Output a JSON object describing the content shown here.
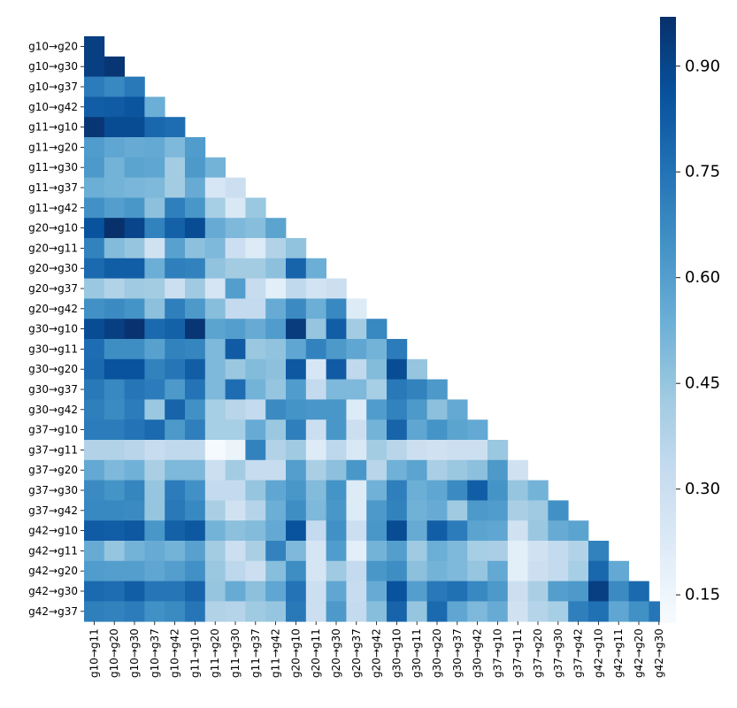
{
  "chart_data": {
    "type": "heatmap",
    "title": "",
    "xlabel": "",
    "ylabel": "",
    "mask": "lower-triangle (upper triangle and diagonal hidden)",
    "rows": [
      "g10→g20",
      "g10→g30",
      "g10→g37",
      "g10→g42",
      "g11→g10",
      "g11→g20",
      "g11→g30",
      "g11→g37",
      "g11→g42",
      "g20→g10",
      "g20→g11",
      "g20→g30",
      "g20→g37",
      "g20→g42",
      "g30→g10",
      "g30→g11",
      "g30→g20",
      "g30→g37",
      "g30→g42",
      "g37→g10",
      "g37→g11",
      "g37→g20",
      "g37→g30",
      "g37→g42",
      "g42→g10",
      "g42→g11",
      "g42→g20",
      "g42→g30",
      "g42→g37"
    ],
    "columns": [
      "g10→g11",
      "g10→g20",
      "g10→g30",
      "g10→g37",
      "g10→g42",
      "g11→g10",
      "g11→g20",
      "g11→g30",
      "g11→g37",
      "g11→g42",
      "g20→g10",
      "g20→g11",
      "g20→g30",
      "g20→g37",
      "g20→g42",
      "g30→g10",
      "g30→g11",
      "g30→g20",
      "g30→g37",
      "g30→g42",
      "g37→g10",
      "g37→g11",
      "g37→g20",
      "g37→g30",
      "g37→g42",
      "g42→g10",
      "g42→g11",
      "g42→g20",
      "g42→g30"
    ],
    "values": [
      [
        0.92
      ],
      [
        0.92,
        0.95
      ],
      [
        0.72,
        0.68,
        0.73
      ],
      [
        0.82,
        0.83,
        0.85,
        0.54
      ],
      [
        0.95,
        0.88,
        0.88,
        0.79,
        0.77
      ],
      [
        0.61,
        0.57,
        0.55,
        0.56,
        0.5,
        0.61
      ],
      [
        0.62,
        0.52,
        0.58,
        0.57,
        0.42,
        0.62,
        0.52
      ],
      [
        0.54,
        0.52,
        0.51,
        0.5,
        0.42,
        0.55,
        0.25,
        0.3
      ],
      [
        0.65,
        0.6,
        0.63,
        0.47,
        0.71,
        0.63,
        0.41,
        0.24,
        0.44
      ],
      [
        0.86,
        0.97,
        0.9,
        0.7,
        0.81,
        0.88,
        0.55,
        0.5,
        0.48,
        0.58
      ],
      [
        0.7,
        0.49,
        0.45,
        0.28,
        0.59,
        0.47,
        0.5,
        0.3,
        0.22,
        0.38,
        0.46
      ],
      [
        0.78,
        0.82,
        0.82,
        0.54,
        0.71,
        0.7,
        0.46,
        0.42,
        0.42,
        0.47,
        0.8,
        0.54
      ],
      [
        0.44,
        0.38,
        0.43,
        0.42,
        0.3,
        0.43,
        0.26,
        0.6,
        0.32,
        0.2,
        0.34,
        0.27,
        0.3
      ],
      [
        0.65,
        0.67,
        0.64,
        0.47,
        0.71,
        0.62,
        0.48,
        0.33,
        0.33,
        0.55,
        0.67,
        0.54,
        0.68,
        0.22
      ],
      [
        0.88,
        0.92,
        0.96,
        0.78,
        0.81,
        0.95,
        0.58,
        0.6,
        0.55,
        0.61,
        0.93,
        0.45,
        0.82,
        0.42,
        0.68
      ],
      [
        0.77,
        0.66,
        0.66,
        0.59,
        0.7,
        0.69,
        0.5,
        0.83,
        0.44,
        0.46,
        0.57,
        0.7,
        0.62,
        0.57,
        0.52,
        0.72
      ],
      [
        0.78,
        0.86,
        0.86,
        0.7,
        0.74,
        0.82,
        0.5,
        0.44,
        0.49,
        0.47,
        0.84,
        0.25,
        0.83,
        0.34,
        0.49,
        0.88,
        0.45
      ],
      [
        0.73,
        0.68,
        0.74,
        0.72,
        0.62,
        0.75,
        0.5,
        0.77,
        0.52,
        0.45,
        0.61,
        0.33,
        0.5,
        0.5,
        0.41,
        0.73,
        0.7,
        0.62
      ],
      [
        0.71,
        0.67,
        0.72,
        0.44,
        0.8,
        0.65,
        0.41,
        0.36,
        0.33,
        0.67,
        0.64,
        0.63,
        0.63,
        0.22,
        0.61,
        0.7,
        0.62,
        0.47,
        0.56
      ],
      [
        0.72,
        0.72,
        0.75,
        0.78,
        0.62,
        0.71,
        0.41,
        0.41,
        0.55,
        0.44,
        0.71,
        0.3,
        0.63,
        0.3,
        0.52,
        0.8,
        0.57,
        0.64,
        0.58,
        0.56
      ],
      [
        0.38,
        0.38,
        0.36,
        0.32,
        0.34,
        0.34,
        0.12,
        0.16,
        0.7,
        0.38,
        0.43,
        0.22,
        0.35,
        0.24,
        0.42,
        0.36,
        0.3,
        0.28,
        0.3,
        0.3,
        0.44
      ],
      [
        0.56,
        0.5,
        0.53,
        0.4,
        0.5,
        0.5,
        0.3,
        0.42,
        0.32,
        0.32,
        0.6,
        0.4,
        0.47,
        0.63,
        0.36,
        0.53,
        0.58,
        0.4,
        0.44,
        0.47,
        0.62,
        0.28
      ],
      [
        0.67,
        0.64,
        0.69,
        0.45,
        0.72,
        0.65,
        0.33,
        0.33,
        0.45,
        0.57,
        0.63,
        0.49,
        0.64,
        0.22,
        0.53,
        0.71,
        0.54,
        0.57,
        0.67,
        0.82,
        0.64,
        0.45,
        0.52
      ],
      [
        0.68,
        0.68,
        0.67,
        0.45,
        0.73,
        0.68,
        0.4,
        0.28,
        0.37,
        0.54,
        0.66,
        0.5,
        0.63,
        0.22,
        0.62,
        0.7,
        0.53,
        0.55,
        0.43,
        0.62,
        0.61,
        0.4,
        0.43,
        0.65
      ],
      [
        0.83,
        0.82,
        0.84,
        0.63,
        0.81,
        0.84,
        0.52,
        0.47,
        0.49,
        0.56,
        0.86,
        0.33,
        0.65,
        0.3,
        0.63,
        0.88,
        0.55,
        0.82,
        0.72,
        0.58,
        0.57,
        0.28,
        0.44,
        0.55,
        0.58
      ],
      [
        0.55,
        0.45,
        0.52,
        0.55,
        0.52,
        0.59,
        0.42,
        0.3,
        0.4,
        0.7,
        0.5,
        0.26,
        0.61,
        0.2,
        0.52,
        0.6,
        0.43,
        0.54,
        0.5,
        0.41,
        0.4,
        0.2,
        0.28,
        0.33,
        0.38,
        0.7
      ],
      [
        0.61,
        0.6,
        0.6,
        0.57,
        0.6,
        0.65,
        0.44,
        0.35,
        0.3,
        0.48,
        0.66,
        0.26,
        0.43,
        0.33,
        0.63,
        0.66,
        0.47,
        0.52,
        0.5,
        0.45,
        0.56,
        0.2,
        0.3,
        0.33,
        0.41,
        0.79,
        0.56
      ],
      [
        0.78,
        0.77,
        0.82,
        0.74,
        0.74,
        0.8,
        0.45,
        0.55,
        0.47,
        0.57,
        0.75,
        0.3,
        0.57,
        0.32,
        0.55,
        0.86,
        0.6,
        0.73,
        0.76,
        0.68,
        0.62,
        0.3,
        0.4,
        0.6,
        0.62,
        0.92,
        0.67,
        0.78
      ],
      [
        0.71,
        0.7,
        0.72,
        0.65,
        0.67,
        0.74,
        0.38,
        0.37,
        0.43,
        0.45,
        0.73,
        0.3,
        0.62,
        0.33,
        0.48,
        0.8,
        0.45,
        0.78,
        0.57,
        0.5,
        0.55,
        0.28,
        0.37,
        0.41,
        0.71,
        0.76,
        0.57,
        0.65,
        0.74
      ]
    ],
    "colorbar": {
      "colormap": "Blues",
      "vmin": 0.11,
      "vmax": 0.97,
      "ticks": [
        0.15,
        0.3,
        0.45,
        0.6,
        0.75,
        0.9
      ],
      "tick_labels": [
        "0.15",
        "0.30",
        "0.45",
        "0.60",
        "0.75",
        "0.90"
      ]
    }
  }
}
